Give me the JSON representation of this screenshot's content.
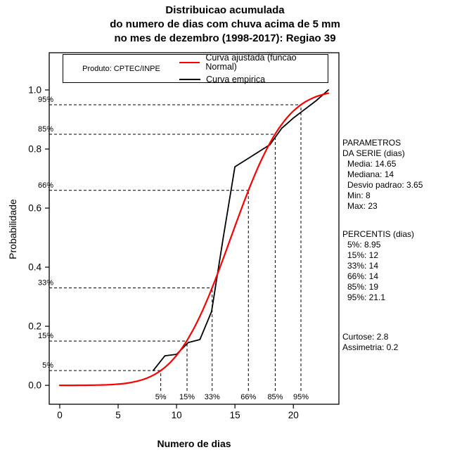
{
  "chart_data": {
    "type": "line",
    "title_lines": [
      "Distribuicao acumulada",
      "do numero de dias com chuva acima de 5 mm",
      "no mes de dezembro (1998-2017): Regiao 39"
    ],
    "xlabel": "Numero de dias",
    "ylabel": "Probabilidade",
    "xlim": [
      -0.9,
      23.9
    ],
    "ylim": [
      -0.064,
      1.126
    ],
    "x_ticks": [
      0,
      5,
      10,
      15,
      20
    ],
    "y_ticks": [
      0.0,
      0.2,
      0.4,
      0.6,
      0.8,
      1.0
    ],
    "grid": false,
    "legend_position": "top",
    "legend": {
      "product": "Produto: CPTEC/INPE",
      "entries": [
        {
          "label": "Curva ajustada (funcao Normal)",
          "color": "#ff0000"
        },
        {
          "label": "Curva empirica",
          "color": "#000000"
        }
      ]
    },
    "series": [
      {
        "name": "Curva ajustada (funcao Normal)",
        "color": "#ff0000",
        "model": "normal_cdf",
        "mean": 14.65,
        "sd": 3.65,
        "x_min": 0,
        "x_max": 23
      },
      {
        "name": "Curva empirica",
        "color": "#000000",
        "points": [
          [
            8,
            0.05
          ],
          [
            9,
            0.1
          ],
          [
            10,
            0.105
          ],
          [
            11,
            0.145
          ],
          [
            12,
            0.155
          ],
          [
            13,
            0.25
          ],
          [
            14,
            0.5
          ],
          [
            15,
            0.74
          ],
          [
            16,
            0.765
          ],
          [
            17,
            0.79
          ],
          [
            18,
            0.815
          ],
          [
            19,
            0.87
          ],
          [
            20,
            0.905
          ],
          [
            21,
            0.935
          ],
          [
            22,
            0.965
          ],
          [
            23,
            1.0
          ]
        ]
      }
    ],
    "quantile_guides": [
      {
        "label": "5%",
        "p": 0.05,
        "x": 8.65
      },
      {
        "label": "15%",
        "p": 0.15,
        "x": 10.9
      },
      {
        "label": "33%",
        "p": 0.33,
        "x": 13.05
      },
      {
        "label": "66%",
        "p": 0.66,
        "x": 16.15
      },
      {
        "label": "85%",
        "p": 0.85,
        "x": 18.45
      },
      {
        "label": "95%",
        "p": 0.95,
        "x": 20.65
      }
    ]
  },
  "side_panel": {
    "parametros": {
      "title1": "PARAMETROS",
      "title2": "DA SERIE (dias)",
      "items": [
        "Media: 14.65",
        "Mediana: 14",
        "Desvio padrao: 3.65",
        "Min: 8",
        "Max: 23"
      ]
    },
    "percentis": {
      "title": "PERCENTIS (dias)",
      "items": [
        "5%: 8.95",
        "15%: 12",
        "33%: 14",
        "66%: 14",
        "85%: 19",
        "95%: 21.1"
      ]
    },
    "moments": [
      "Curtose: 2.8",
      "Assimetria: 0.2"
    ]
  }
}
